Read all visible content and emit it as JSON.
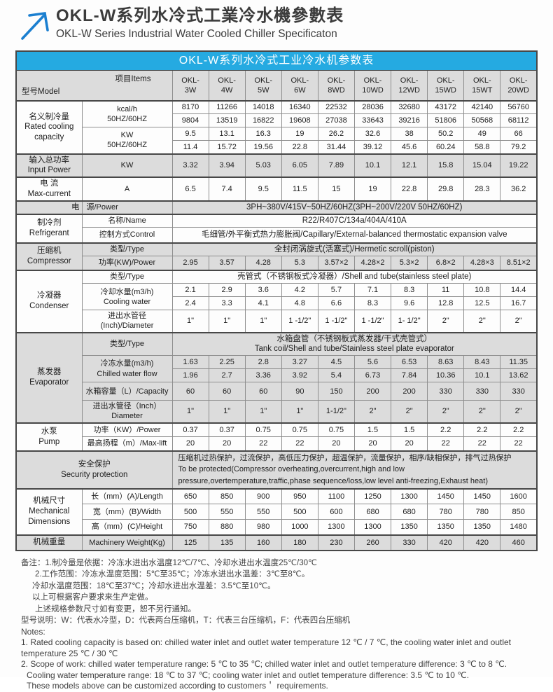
{
  "colors": {
    "accent_blue": "#25aae1",
    "arrow_blue": "#1b7fd0",
    "shade_grey": "#dcdcdc"
  },
  "header": {
    "title_zh": "OKL-W系列水冷式工業冷水機參數表",
    "title_en": "OKL-W Series Industrial Water Cooled Chiller Specificaton"
  },
  "table": {
    "title": "OKL-W系列水冷式工业冷水机参数表",
    "corner_model": "型号Model",
    "corner_items": "项目Items",
    "models": [
      "OKL-\n3W",
      "OKL-\n4W",
      "OKL-\n5W",
      "OKL-\n6W",
      "OKL-\n8WD",
      "OKL-\n10WD",
      "OKL-\n12WD",
      "OKL-\n15WD",
      "OKL-\n15WT",
      "OKL-\n20WD"
    ],
    "rated": {
      "cat": "名义制冷量\nRated cooling\ncapacity",
      "item_kcal": "kcal/h\n50HZ/60HZ",
      "kcal50": [
        "8170",
        "11266",
        "14018",
        "16340",
        "22532",
        "28036",
        "32680",
        "43172",
        "42140",
        "56760"
      ],
      "kcal60": [
        "9804",
        "13519",
        "16822",
        "19608",
        "27038",
        "33643",
        "39216",
        "51806",
        "50568",
        "68112"
      ],
      "item_kw": "KW\n50HZ/60HZ",
      "kw50": [
        "9.5",
        "13.1",
        "16.3",
        "19",
        "26.2",
        "32.6",
        "38",
        "50.2",
        "49",
        "66"
      ],
      "kw60": [
        "11.4",
        "15.72",
        "19.56",
        "22.8",
        "31.44",
        "39.12",
        "45.6",
        "60.24",
        "58.8",
        "79.2"
      ]
    },
    "input_power": {
      "cat": "输入总功率\nInput Power",
      "item": "KW",
      "values": [
        "3.32",
        "3.94",
        "5.03",
        "6.05",
        "7.89",
        "10.1",
        "12.1",
        "15.8",
        "15.04",
        "19.22"
      ]
    },
    "current": {
      "cat": "电 流\nMax-current",
      "item": "A",
      "values": [
        "6.5",
        "7.4",
        "9.5",
        "11.5",
        "15",
        "19",
        "22.8",
        "29.8",
        "28.3",
        "36.2"
      ]
    },
    "power_source": {
      "cat": "电",
      "item": "源/Power",
      "value": "3PH~380V/415V~50HZ/60HZ(3PH~200V/220V 50HZ/60HZ)"
    },
    "refrigerant": {
      "cat": "制冷剂\nRefrigerant",
      "item_name": "名称/Name",
      "name": "R22/R407C/134a/404A/410A",
      "item_control": "控制方式Control",
      "control": "毛细管/外平衡式热力膨胀阀/Capillary/External-balanced thermostatic expansion valve"
    },
    "compressor": {
      "cat": "压缩机\nCompressor",
      "item_type": "类型/Type",
      "type": "全封闭涡旋式(活塞式)/Hermetic scroll(piston)",
      "item_power": "功率(KW)/Power",
      "power": [
        "2.95",
        "3.57",
        "4.28",
        "5.3",
        "3.57×2",
        "4.28×2",
        "5.3×2",
        "6.8×2",
        "4.28×3",
        "8.51×2"
      ]
    },
    "condenser": {
      "cat": "冷凝器\nCondenser",
      "item_type": "类型/Type",
      "type": "壳管式（不锈钢板式冷凝器）/Shell and tube(stainless steel plate)",
      "item_flow": "冷却水量(m3/h)\nCooling water",
      "flow50": [
        "2.1",
        "2.9",
        "3.6",
        "4.2",
        "5.7",
        "7.1",
        "8.3",
        "11",
        "10.8",
        "14.4"
      ],
      "flow60": [
        "2.4",
        "3.3",
        "4.1",
        "4.8",
        "6.6",
        "8.3",
        "9.6",
        "12.8",
        "12.5",
        "16.7"
      ],
      "item_dia": "进出水管径\n(Inch)/Diameter",
      "dia": [
        "1\"",
        "1\"",
        "1\"",
        "1 -1/2\"",
        "1 -1/2\"",
        "1 -1/2\"",
        "1- 1/2\"",
        "2\"",
        "2\"",
        "2\""
      ]
    },
    "evaporator": {
      "cat": "蒸发器\nEvaporator",
      "item_type": "类型/Type",
      "type": "水箱盘管（不锈钢板式蒸发器/干式壳管式）\nTank coil/Shell and tube/Stainless steel plate evaporator",
      "item_flow": "冷冻水量(m3/h)\nChilled water flow",
      "flow50": [
        "1.63",
        "2.25",
        "2.8",
        "3.27",
        "4.5",
        "5.6",
        "6.53",
        "8.63",
        "8.43",
        "11.35"
      ],
      "flow60": [
        "1.96",
        "2.7",
        "3.36",
        "3.92",
        "5.4",
        "6.73",
        "7.84",
        "10.36",
        "10.1",
        "13.62"
      ],
      "item_cap": "水箱容量（L）/Capacity",
      "cap": [
        "60",
        "60",
        "60",
        "90",
        "150",
        "200",
        "200",
        "330",
        "330",
        "330"
      ],
      "item_dia": "进出水管径（Inch）\nDiameter",
      "dia": [
        "1\"",
        "1\"",
        "1\"",
        "1\"",
        "1-1/2\"",
        "2\"",
        "2\"",
        "2\"",
        "2\"",
        "2\""
      ]
    },
    "pump": {
      "cat": "水泵\nPump",
      "item_power": "功率（KW）/Power",
      "power": [
        "0.37",
        "0.37",
        "0.75",
        "0.75",
        "0.75",
        "1.5",
        "1.5",
        "2.2",
        "2.2",
        "2.2"
      ],
      "item_lift": "最高扬程（m）/Max-lift",
      "lift": [
        "20",
        "20",
        "22",
        "22",
        "20",
        "20",
        "20",
        "22",
        "22",
        "22"
      ]
    },
    "security": {
      "label": "安全保护\nSecurity protection",
      "value": "压缩机过热保护，过流保护，高低压力保护，超温保护，流量保护，相序/缺相保护，排气过热保护\nTo be protected(Compressor overheating,overcurrent,high and low\npressure,overtemperature,traffic,phase sequence/loss,low level anti-freezing,Exhaust heat)"
    },
    "dimensions": {
      "cat": "机械尺寸\nMechanical\nDimensions",
      "item_len": "长（mm）(A)/Length",
      "len": [
        "650",
        "850",
        "900",
        "950",
        "1100",
        "1250",
        "1300",
        "1450",
        "1450",
        "1600"
      ],
      "item_wid": "宽（mm）(B)/Width",
      "wid": [
        "500",
        "550",
        "550",
        "500",
        "600",
        "680",
        "680",
        "780",
        "780",
        "850"
      ],
      "item_hei": "高（mm）(C)/Height",
      "hei": [
        "750",
        "880",
        "980",
        "1000",
        "1300",
        "1300",
        "1350",
        "1350",
        "1350",
        "1480"
      ]
    },
    "weight": {
      "label_zh": "机械重量",
      "label_en": "Machinery Weight(Kg)",
      "values": [
        "125",
        "135",
        "160",
        "180",
        "230",
        "260",
        "330",
        "420",
        "420",
        "460"
      ]
    }
  },
  "notes": {
    "zh": [
      "备注：1.制冷量是依据：冷冻水进出水温度12℃/7℃、冷却水进出水温度25℃/30℃",
      "2.工作范围：冷冻水温度范围：5℃至35℃；冷冻水进出水温差：3℃至8℃。",
      "冷却水温度范围：18℃至37℃；冷却水进出水温差：3.5℃至10℃。",
      "以上可根据客户要求来生产定做。",
      "上述规格参数尺寸如有变更，恕不另行通知。",
      "型号说明：W：代表水冷型，D：代表两台压缩机，T：代表三台压缩机，F：代表四台压缩机"
    ],
    "en": [
      "Notes:",
      "1. Rated cooling capacity is based on: chilled water inlet and outlet water temperature 12 ℃ / 7 ℃, the cooling water inlet and outlet",
      "temperature 25 ℃ / 30 ℃",
      "2. Scope of work: chilled water temperature range: 5 ℃ to 35 ℃; chilled water inlet and outlet temperature difference: 3 ℃ to 8 ℃.",
      "Cooling water temperature range: 18 ℃ to 37 ℃; cooling water inlet and outlet temperature difference: 3.5 ℃ to 10 ℃.",
      "These models above can be customized according to customers＇ requirements."
    ]
  }
}
